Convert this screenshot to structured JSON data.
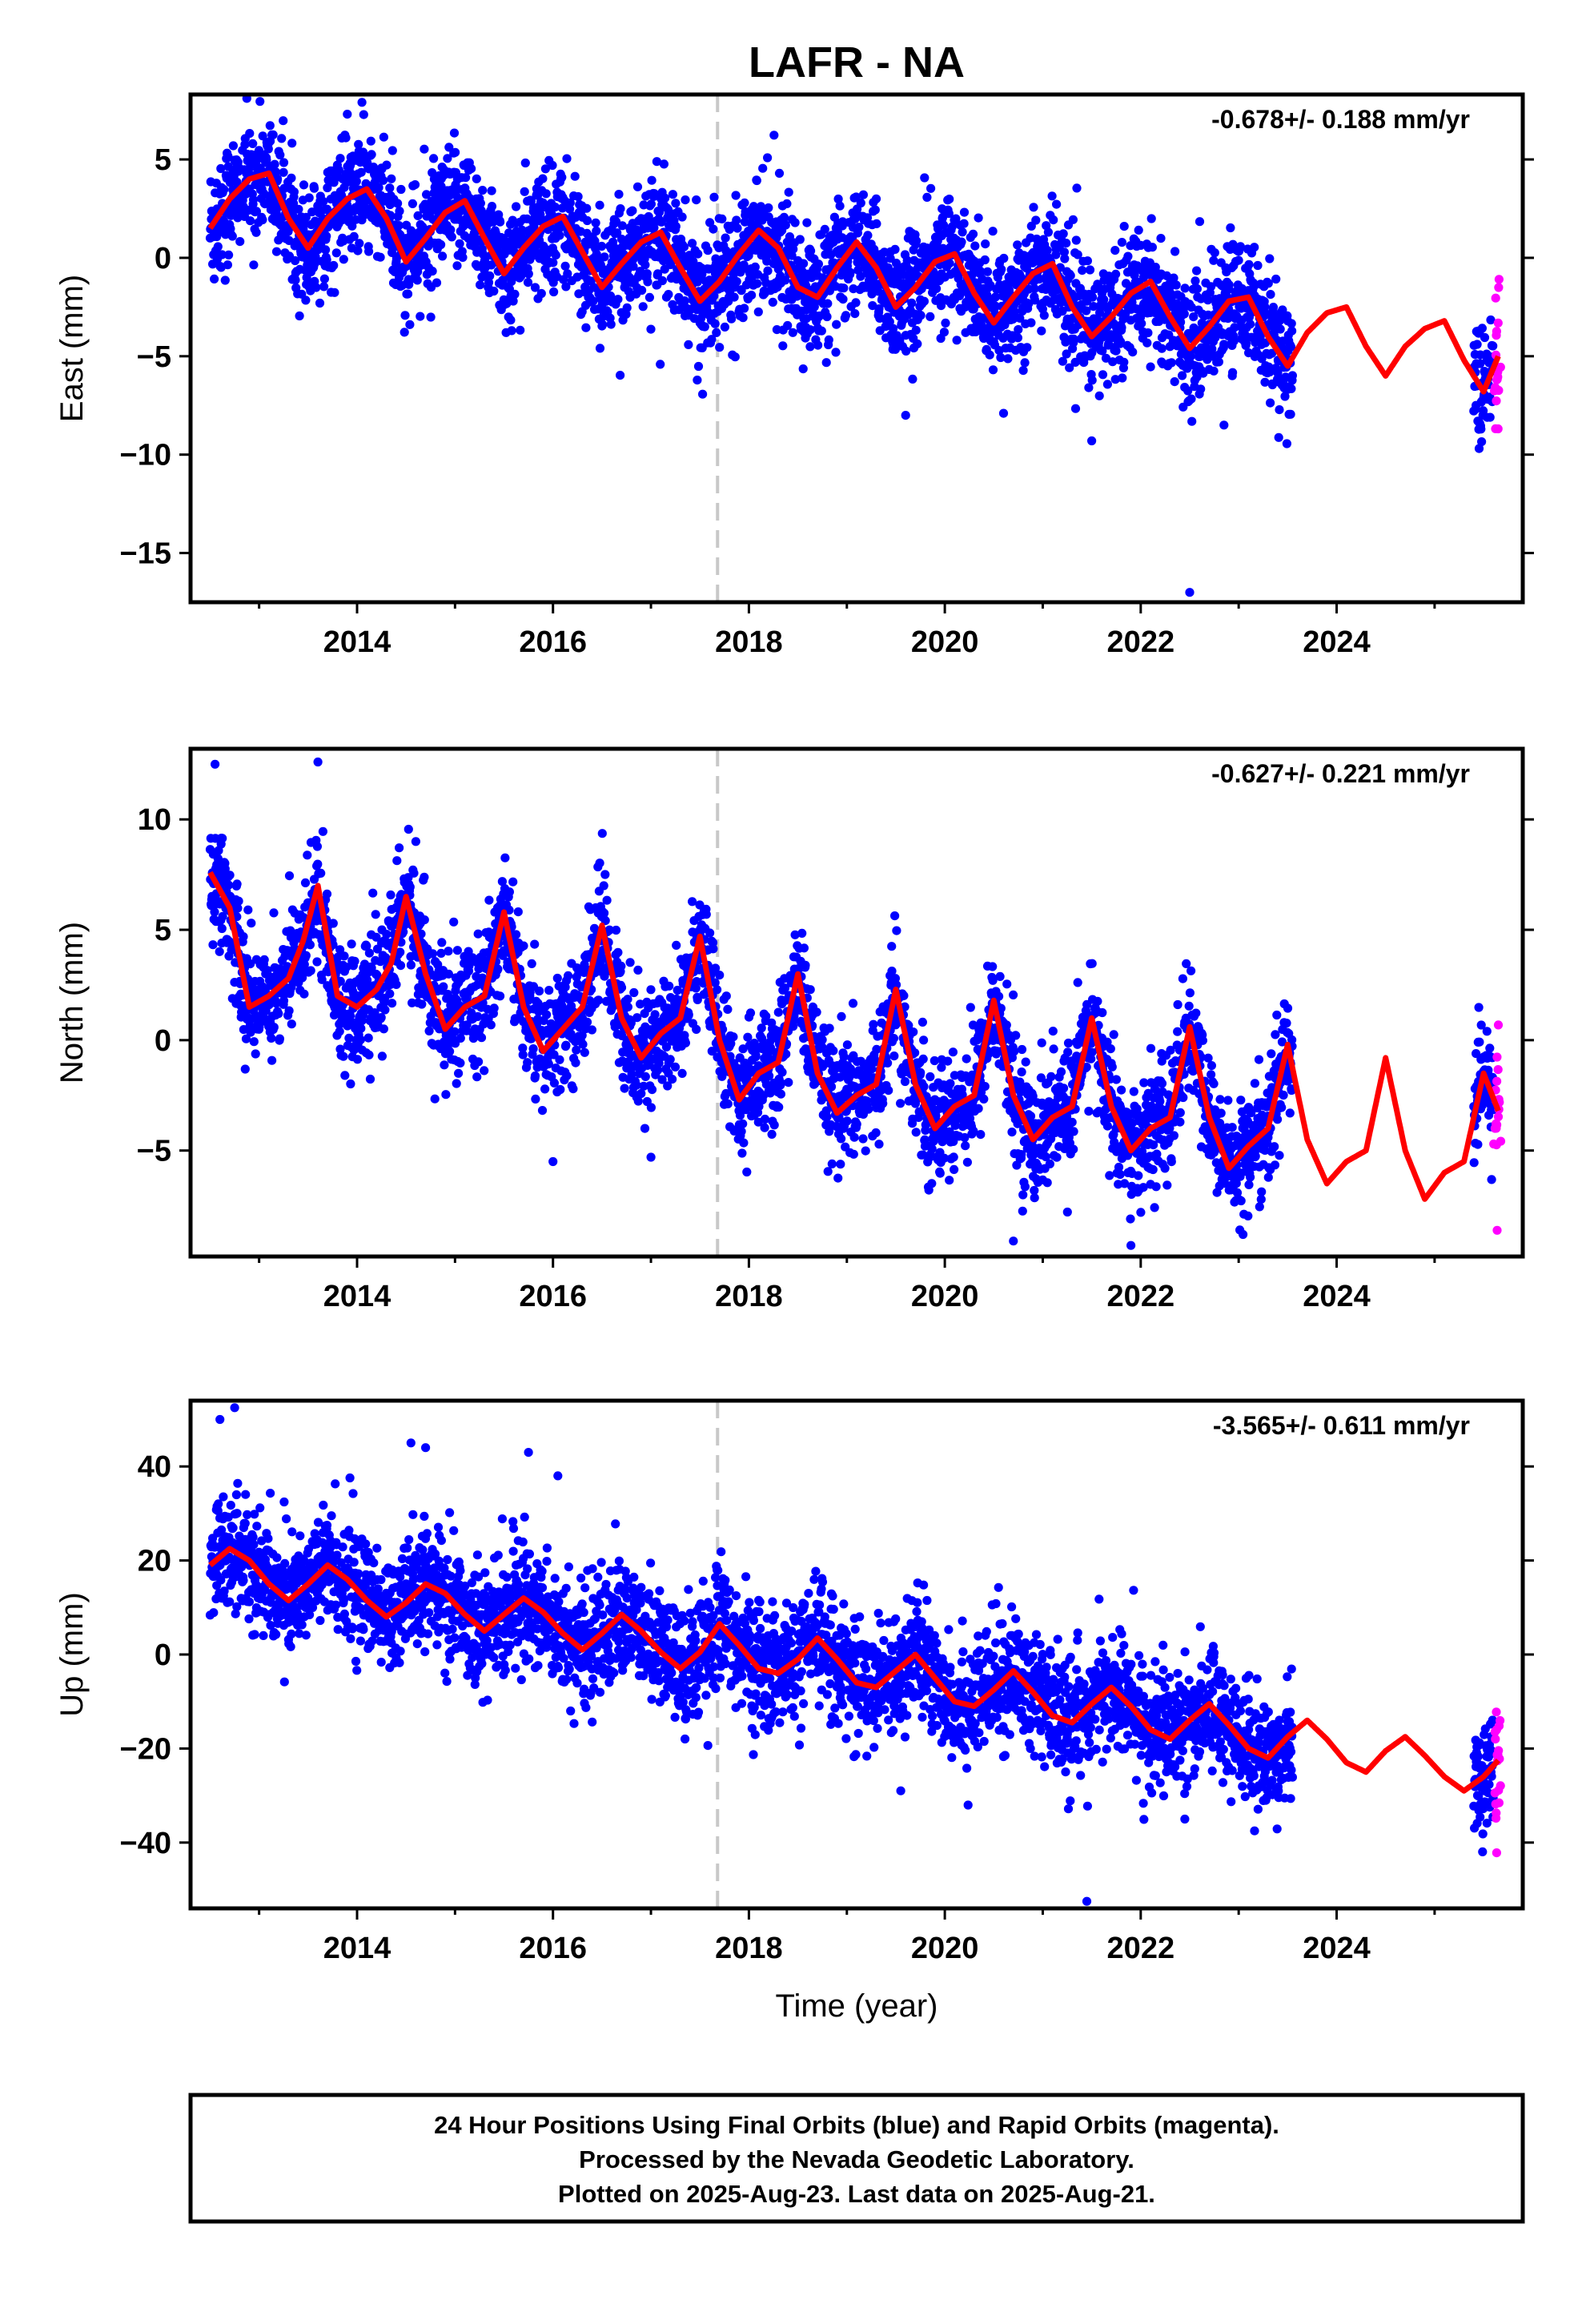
{
  "title": "LAFR - NA",
  "colors": {
    "final_orbits": "#0000ff",
    "rapid_orbits": "#ff00ff",
    "model": "#ff0000",
    "marker_line": "#c8c8c8",
    "frame": "#000000"
  },
  "chart_data": [
    {
      "type": "scatter",
      "id": "east",
      "ylabel": "East (mm)",
      "rate_text": "-0.678+/- 0.188 mm/yr",
      "xlim": [
        2012.3,
        2025.9
      ],
      "ylim": [
        -17.5,
        8.3
      ],
      "xticks": [
        2014,
        2016,
        2018,
        2020,
        2022,
        2024
      ],
      "yticks": [
        5,
        0,
        -5,
        -10,
        -15
      ],
      "grid": false,
      "vertical_marker_x": 2017.68,
      "model": {
        "x": [
          2012.5,
          2012.7,
          2012.9,
          2013.1,
          2013.3,
          2013.5,
          2013.7,
          2013.9,
          2014.1,
          2014.3,
          2014.5,
          2014.7,
          2014.9,
          2015.1,
          2015.3,
          2015.5,
          2015.7,
          2015.9,
          2016.1,
          2016.3,
          2016.5,
          2016.7,
          2016.9,
          2017.1,
          2017.3,
          2017.5,
          2017.7,
          2017.9,
          2018.1,
          2018.3,
          2018.5,
          2018.7,
          2018.9,
          2019.1,
          2019.3,
          2019.5,
          2019.7,
          2019.9,
          2020.1,
          2020.3,
          2020.5,
          2020.7,
          2020.9,
          2021.1,
          2021.3,
          2021.5,
          2021.7,
          2021.9,
          2022.1,
          2022.3,
          2022.5,
          2022.7,
          2022.9,
          2023.1,
          2023.3,
          2023.5,
          2023.7,
          2023.9,
          2024.1,
          2024.3,
          2024.5,
          2024.7,
          2024.9,
          2025.1,
          2025.3,
          2025.5,
          2025.65
        ],
        "y": [
          1.5,
          3.0,
          4.0,
          4.3,
          2.0,
          0.5,
          2.0,
          3.0,
          3.5,
          2.0,
          -0.2,
          1.0,
          2.3,
          2.9,
          1.0,
          -0.8,
          0.5,
          1.6,
          2.1,
          0.3,
          -1.5,
          -0.3,
          0.8,
          1.3,
          -0.5,
          -2.2,
          -1.2,
          0.2,
          1.4,
          0.5,
          -1.5,
          -2.0,
          -0.5,
          0.8,
          -0.5,
          -2.5,
          -1.5,
          -0.2,
          0.2,
          -1.8,
          -3.3,
          -2.0,
          -0.8,
          -0.3,
          -2.5,
          -4.0,
          -3.0,
          -1.8,
          -1.2,
          -3.0,
          -4.6,
          -3.5,
          -2.2,
          -2.0,
          -4.0,
          -5.5,
          -3.8,
          -2.8,
          -2.5,
          -4.5,
          -6.0,
          -4.5,
          -3.6,
          -3.2,
          -5.2,
          -6.8,
          -5.0
        ]
      },
      "final_segments": [
        [
          2012.5,
          2023.55
        ],
        [
          2025.4,
          2025.6
        ]
      ],
      "rapid_range": [
        2025.6,
        2025.65
      ],
      "outliers": [
        [
          2022.5,
          -17.0
        ],
        [
          2019.6,
          -8.0
        ],
        [
          2021.5,
          -9.3
        ],
        [
          2020.6,
          -7.9
        ],
        [
          2022.85,
          -8.5
        ],
        [
          2013.9,
          7.3
        ],
        [
          2014.05,
          7.9
        ]
      ]
    },
    {
      "type": "scatter",
      "id": "north",
      "ylabel": "North (mm)",
      "rate_text": "-0.627+/- 0.221 mm/yr",
      "xlim": [
        2012.3,
        2025.9
      ],
      "ylim": [
        -9.8,
        13.2
      ],
      "xticks": [
        2014,
        2016,
        2018,
        2020,
        2022,
        2024
      ],
      "yticks": [
        10,
        5,
        0,
        -5
      ],
      "grid": false,
      "vertical_marker_x": 2017.68,
      "model": {
        "x": [
          2012.5,
          2012.7,
          2012.9,
          2013.1,
          2013.3,
          2013.45,
          2013.6,
          2013.8,
          2014.0,
          2014.2,
          2014.35,
          2014.5,
          2014.7,
          2014.9,
          2015.1,
          2015.3,
          2015.5,
          2015.7,
          2015.9,
          2016.1,
          2016.3,
          2016.5,
          2016.7,
          2016.9,
          2017.1,
          2017.3,
          2017.5,
          2017.7,
          2017.9,
          2018.1,
          2018.3,
          2018.5,
          2018.7,
          2018.9,
          2019.1,
          2019.3,
          2019.5,
          2019.7,
          2019.9,
          2020.1,
          2020.3,
          2020.5,
          2020.7,
          2020.9,
          2021.1,
          2021.3,
          2021.5,
          2021.7,
          2021.9,
          2022.1,
          2022.3,
          2022.5,
          2022.7,
          2022.9,
          2023.1,
          2023.3,
          2023.5,
          2023.7,
          2023.9,
          2024.1,
          2024.3,
          2024.5,
          2024.7,
          2024.9,
          2025.1,
          2025.3,
          2025.5,
          2025.65
        ],
        "y": [
          7.6,
          6.0,
          1.5,
          2.0,
          2.8,
          4.5,
          7.0,
          2.0,
          1.5,
          2.3,
          3.5,
          6.5,
          3.0,
          0.5,
          1.5,
          2.0,
          5.8,
          1.5,
          -0.5,
          0.5,
          1.5,
          5.2,
          1.0,
          -0.8,
          0.3,
          1.0,
          4.7,
          0.0,
          -2.7,
          -1.5,
          -1.0,
          3.0,
          -1.5,
          -3.3,
          -2.5,
          -2.0,
          2.3,
          -2.0,
          -4.0,
          -3.0,
          -2.5,
          1.8,
          -2.5,
          -4.5,
          -3.5,
          -3.0,
          1.0,
          -3.0,
          -5.0,
          -4.0,
          -3.5,
          0.6,
          -3.5,
          -5.8,
          -4.8,
          -4.0,
          -0.2,
          -4.5,
          -6.5,
          -5.5,
          -5.0,
          -0.8,
          -5.0,
          -7.2,
          -6.0,
          -5.5,
          -1.5,
          -3.2
        ]
      },
      "final_segments": [
        [
          2012.5,
          2023.55
        ],
        [
          2025.4,
          2025.6
        ]
      ],
      "rapid_range": [
        2025.6,
        2025.65
      ],
      "outliers": [
        [
          2012.55,
          12.5
        ],
        [
          2013.6,
          12.6
        ],
        [
          2014.6,
          9.0
        ],
        [
          2021.9,
          -9.3
        ],
        [
          2020.7,
          -9.1
        ],
        [
          2016.0,
          -5.5
        ],
        [
          2017.0,
          -5.3
        ]
      ]
    },
    {
      "type": "scatter",
      "id": "up",
      "ylabel": "Up (mm)",
      "xlabel": "Time (year)",
      "rate_text": "-3.565+/- 0.611 mm/yr",
      "xlim": [
        2012.3,
        2025.9
      ],
      "ylim": [
        -54,
        54
      ],
      "xticks": [
        2014,
        2016,
        2018,
        2020,
        2022,
        2024
      ],
      "yticks": [
        40,
        20,
        0,
        -20,
        -40
      ],
      "grid": false,
      "vertical_marker_x": 2017.68,
      "model": {
        "x": [
          2012.5,
          2012.7,
          2012.9,
          2013.1,
          2013.3,
          2013.5,
          2013.7,
          2013.9,
          2014.1,
          2014.3,
          2014.5,
          2014.7,
          2014.9,
          2015.1,
          2015.3,
          2015.5,
          2015.7,
          2015.9,
          2016.1,
          2016.3,
          2016.5,
          2016.7,
          2016.9,
          2017.1,
          2017.3,
          2017.5,
          2017.7,
          2017.9,
          2018.1,
          2018.3,
          2018.5,
          2018.7,
          2018.9,
          2019.1,
          2019.3,
          2019.5,
          2019.7,
          2019.9,
          2020.1,
          2020.3,
          2020.5,
          2020.7,
          2020.9,
          2021.1,
          2021.3,
          2021.5,
          2021.7,
          2021.9,
          2022.1,
          2022.3,
          2022.5,
          2022.7,
          2022.9,
          2023.1,
          2023.3,
          2023.5,
          2023.7,
          2023.9,
          2024.1,
          2024.3,
          2024.5,
          2024.7,
          2024.9,
          2025.1,
          2025.3,
          2025.5,
          2025.65
        ],
        "y": [
          19,
          22.5,
          20,
          15,
          11.5,
          15,
          19,
          16,
          11.5,
          8,
          11,
          15,
          13,
          8.5,
          5,
          8.5,
          12,
          9,
          4.5,
          1,
          4.5,
          8.5,
          5,
          0.5,
          -3,
          0.5,
          6.5,
          2,
          -3,
          -4,
          -1,
          3.5,
          -1,
          -6,
          -7,
          -3.5,
          0,
          -5,
          -10,
          -11,
          -7.5,
          -3.5,
          -8,
          -13,
          -14.5,
          -10.5,
          -7,
          -11,
          -16,
          -18,
          -14,
          -10.5,
          -15,
          -20,
          -22,
          -17.5,
          -14,
          -18,
          -23,
          -25,
          -20.5,
          -17.5,
          -21.5,
          -26,
          -29,
          -26,
          -22.5
        ]
      },
      "final_segments": [
        [
          2012.5,
          2023.55
        ],
        [
          2025.4,
          2025.6
        ]
      ],
      "rapid_range": [
        2025.6,
        2025.65
      ],
      "outliers": [
        [
          2012.6,
          50
        ],
        [
          2012.75,
          52.5
        ],
        [
          2014.55,
          45
        ],
        [
          2014.7,
          44
        ],
        [
          2015.75,
          43
        ],
        [
          2016.05,
          38
        ],
        [
          2021.45,
          -52.5
        ],
        [
          2022.45,
          -35
        ],
        [
          2019.55,
          -29
        ]
      ]
    }
  ],
  "footer": {
    "line1": "24 Hour Positions Using Final Orbits (blue) and Rapid Orbits (magenta).",
    "line2": "Processed by the Nevada Geodetic Laboratory.",
    "line3": "Plotted on 2025-Aug-23. Last data on 2025-Aug-21."
  }
}
